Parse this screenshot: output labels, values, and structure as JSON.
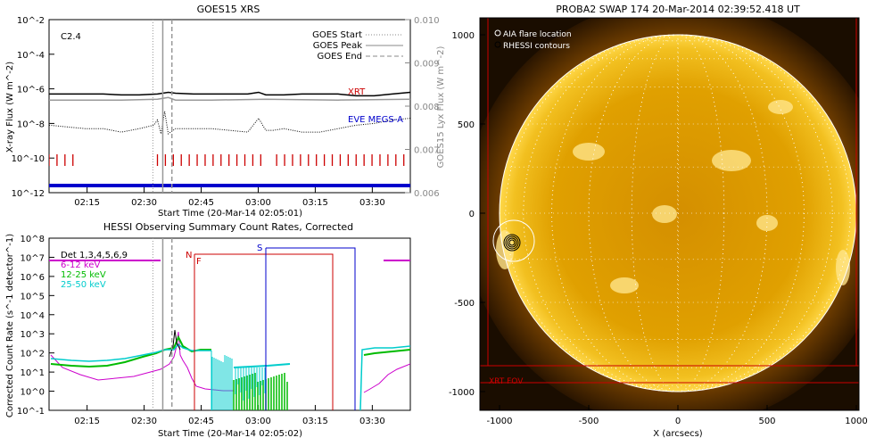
{
  "chart_data": [
    {
      "type": "line",
      "title": "GOES15 XRS",
      "xlabel": "Start Time (20-Mar-14 02:05:01)",
      "ylabel": "X-ray Flux (W m^-2)",
      "y2label": "GOES15 Lyx Flux (W m^-2)",
      "x_ticks": [
        "02:15",
        "02:30",
        "02:45",
        "03:00",
        "03:15",
        "03:30"
      ],
      "y_ticks": [
        "10^-2",
        "10^-4",
        "10^-6",
        "10^-8",
        "10^-10",
        "10^-12"
      ],
      "y2_ticks": [
        "0.010",
        "0.009",
        "0.008",
        "0.007",
        "0.006"
      ],
      "annotation": "C2.4",
      "legend": [
        {
          "name": "GOES Start",
          "style": "dotted"
        },
        {
          "name": "GOES Peak",
          "style": "solid"
        },
        {
          "name": "GOES End",
          "style": "dashed"
        }
      ],
      "labels": {
        "xrt": "XRT",
        "eve": "EVE MEGS-A"
      },
      "colors": {
        "xrt": "#cc0000",
        "eve": "#0000cc",
        "lya": "#999999"
      },
      "series": [
        {
          "name": "long",
          "x": [
            0,
            5,
            10,
            15,
            20,
            25,
            30,
            33,
            35,
            40,
            45,
            50,
            55,
            58,
            60,
            65,
            70,
            75,
            80,
            85,
            90,
            95,
            100
          ],
          "y": [
            -6.3,
            -6.3,
            -6.3,
            -6.3,
            -6.35,
            -6.35,
            -6.3,
            -6.2,
            -6.25,
            -6.3,
            -6.3,
            -6.3,
            -6.3,
            -6.2,
            -6.35,
            -6.35,
            -6.3,
            -6.3,
            -6.3,
            -6.4,
            -6.4,
            -6.3,
            -6.2
          ]
        },
        {
          "name": "lya",
          "x": [
            0,
            20,
            30,
            33,
            35,
            45,
            60,
            80,
            100
          ],
          "y": [
            -6.65,
            -6.65,
            -6.6,
            -6.5,
            -6.65,
            -6.65,
            -6.6,
            -6.65,
            -6.6
          ]
        },
        {
          "name": "short",
          "x": [
            0,
            5,
            10,
            15,
            20,
            25,
            29,
            30,
            31,
            32,
            33,
            35,
            40,
            45,
            50,
            55,
            58,
            60,
            62,
            65,
            70,
            75,
            80,
            85,
            90,
            95,
            100
          ],
          "y": [
            -8.1,
            -8.2,
            -8.3,
            -8.3,
            -8.5,
            -8.3,
            -8.1,
            -7.8,
            -8.6,
            -7.3,
            -8.6,
            -8.3,
            -8.3,
            -8.3,
            -8.4,
            -8.5,
            -7.7,
            -8.4,
            -8.4,
            -8.3,
            -8.5,
            -8.5,
            -8.3,
            -8.1,
            -8.0,
            -7.8,
            -7.7
          ]
        }
      ],
      "xrt_segments": [
        [
          0,
          8
        ],
        [
          30,
          60
        ],
        [
          63,
          100
        ]
      ],
      "goes_times": {
        "start": 27.3,
        "peak": 29.9,
        "end": 32.3
      }
    },
    {
      "type": "line",
      "title": "HESSI Observing Summary Count Rates, Corrected",
      "xlabel": "Start Time (20-Mar-14 02:05:02)",
      "ylabel": "Corrected Count Rate (s^-1 detector^-1)",
      "x_ticks": [
        "02:15",
        "02:30",
        "02:45",
        "03:00",
        "03:15",
        "03:30"
      ],
      "y_ticks": [
        "10^8",
        "10^7",
        "10^6",
        "10^5",
        "10^4",
        "10^3",
        "10^2",
        "10^1",
        "10^0",
        "10^-1"
      ],
      "legend": [
        {
          "name": "Det 1,3,4,5,6,9",
          "color": "#000000"
        },
        {
          "name": "6-12 keV",
          "color": "#cc00cc"
        },
        {
          "name": "12-25 keV",
          "color": "#00bb00"
        },
        {
          "name": "25-50 keV",
          "color": "#00cccc"
        }
      ],
      "flags": {
        "n": "N",
        "f": "F",
        "s": "S"
      }
    }
  ],
  "image_panel": {
    "title": "PROBA2 SWAP 174 20-Mar-2014 02:39:52.418 UT",
    "xlabel": "X (arcsecs)",
    "x_ticks": [
      "-1000",
      "-500",
      "0",
      "500",
      "1000"
    ],
    "y_ticks": [
      "1000",
      "500",
      "0",
      "-500",
      "-1000"
    ],
    "legend": [
      "AIA flare location",
      "RHESSI contours"
    ],
    "fov_label": "XRT FOV"
  }
}
